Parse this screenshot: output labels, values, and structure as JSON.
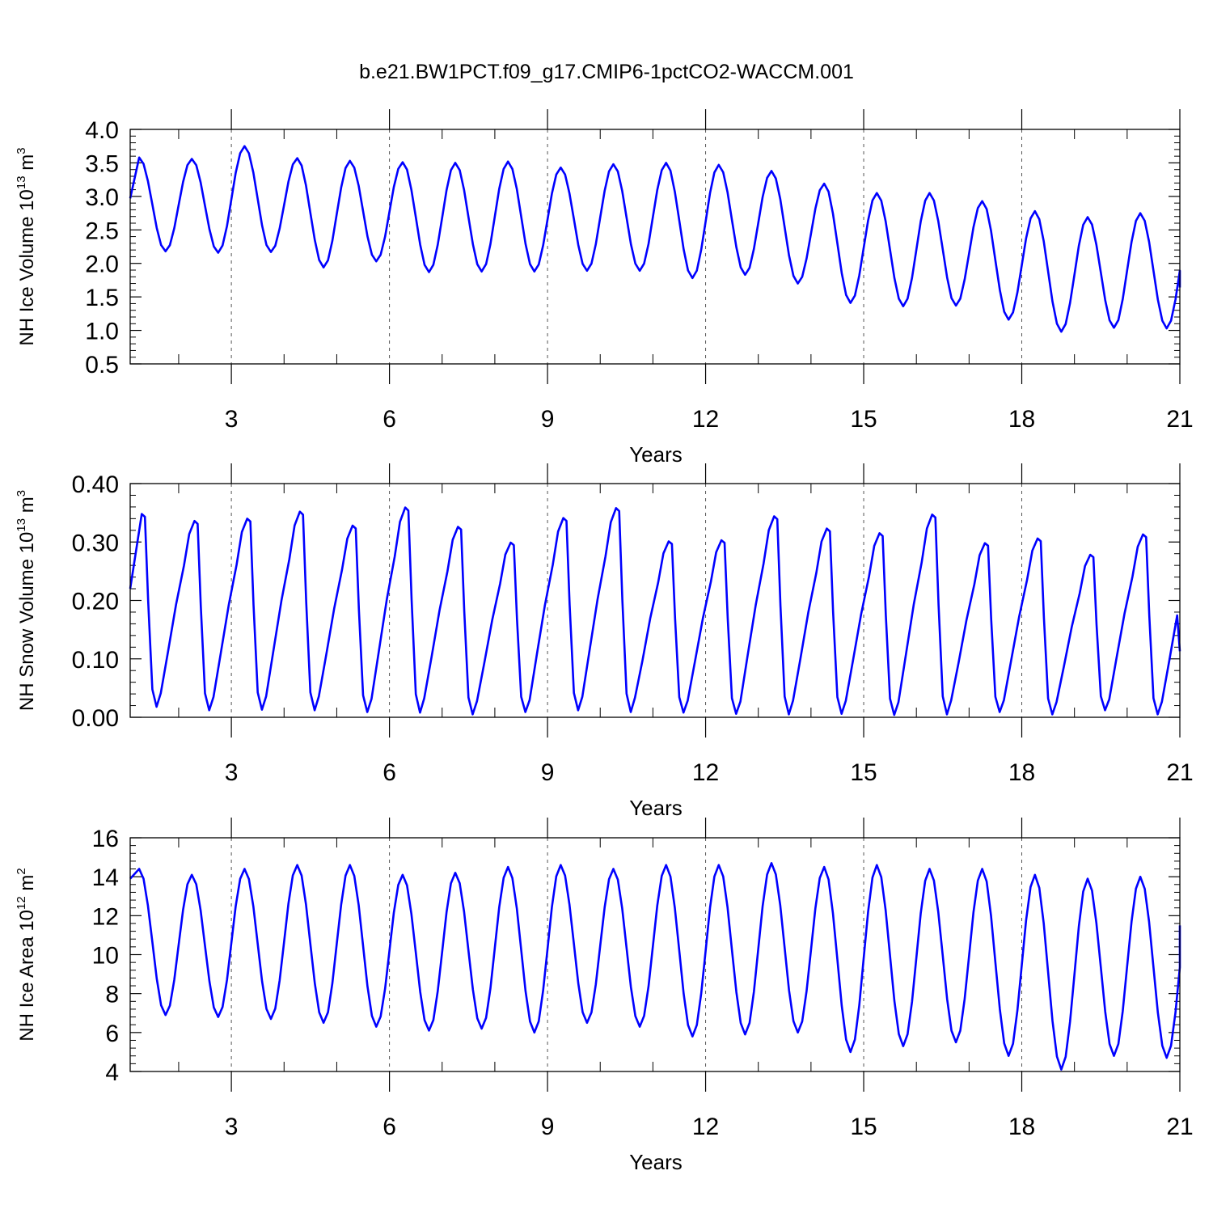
{
  "title": "b.e21.BW1PCT.f09_g17.CMIP6-1pctCO2-WACCM.001",
  "chart_data": [
    {
      "type": "line",
      "name": "ice-volume",
      "ylabel_main": "NH Ice Volume 10",
      "ylabel_exp": "13",
      "ylabel_unit": " m",
      "ylabel_unit_exp": "3",
      "xlabel": "Years",
      "xlim": [
        1.08,
        21.0
      ],
      "ylim": [
        0.5,
        4.0
      ],
      "xticks": [
        3,
        6,
        9,
        12,
        15,
        18,
        21
      ],
      "yticks": [
        0.5,
        1.0,
        1.5,
        2.0,
        2.5,
        3.0,
        3.5,
        4.0
      ],
      "ytick_labels": [
        "0.5",
        "1.0",
        "1.5",
        "2.0",
        "2.5",
        "3.0",
        "3.5",
        "4.0"
      ],
      "color": "#0000ff",
      "series": {
        "name": "NH Ice Volume",
        "maxima": [
          3.58,
          3.56,
          3.75,
          3.57,
          3.53,
          3.51,
          3.5,
          3.52,
          3.43,
          3.48,
          3.5,
          3.47,
          3.38,
          3.19,
          3.05,
          3.05,
          2.93,
          2.78,
          2.69,
          2.75
        ],
        "minima": [
          2.18,
          2.16,
          2.17,
          1.94,
          2.03,
          1.87,
          1.88,
          1.88,
          1.89,
          1.89,
          1.78,
          1.83,
          1.7,
          1.41,
          1.36,
          1.37,
          1.16,
          0.98,
          1.04,
          1.03
        ],
        "start_value": 2.97,
        "end_value": 1.64
      }
    },
    {
      "type": "line",
      "name": "snow-volume",
      "ylabel_main": "NH Snow Volume 10",
      "ylabel_exp": "13",
      "ylabel_unit": " m",
      "ylabel_unit_exp": "3",
      "xlabel": "Years",
      "xlim": [
        1.08,
        21.0
      ],
      "ylim": [
        0.0,
        0.4
      ],
      "xticks": [
        3,
        6,
        9,
        12,
        15,
        18,
        21
      ],
      "yticks": [
        0.0,
        0.1,
        0.2,
        0.3,
        0.4
      ],
      "ytick_labels": [
        "0.00",
        "0.10",
        "0.20",
        "0.30",
        "0.40"
      ],
      "color": "#0000ff",
      "series": {
        "name": "NH Snow Volume",
        "maxima": [
          0.348,
          0.336,
          0.34,
          0.352,
          0.328,
          0.359,
          0.326,
          0.299,
          0.341,
          0.358,
          0.301,
          0.303,
          0.344,
          0.323,
          0.315,
          0.347,
          0.298,
          0.306,
          0.278,
          0.313
        ],
        "minima": [
          0.018,
          0.012,
          0.013,
          0.012,
          0.009,
          0.008,
          0.005,
          0.009,
          0.012,
          0.009,
          0.008,
          0.006,
          0.005,
          0.006,
          0.004,
          0.005,
          0.009,
          0.005,
          0.012,
          0.005
        ],
        "start_value": 0.22,
        "end_value": 0.113
      }
    },
    {
      "type": "line",
      "name": "ice-area",
      "ylabel_main": "NH Ice Area 10",
      "ylabel_exp": "12",
      "ylabel_unit": " m",
      "ylabel_unit_exp": "2",
      "xlabel": "Years",
      "xlim": [
        1.08,
        21.0
      ],
      "ylim": [
        4,
        16
      ],
      "xticks": [
        3,
        6,
        9,
        12,
        15,
        18,
        21
      ],
      "yticks": [
        4,
        6,
        8,
        10,
        12,
        14,
        16
      ],
      "ytick_labels": [
        "4",
        "6",
        "8",
        "10",
        "12",
        "14",
        "16"
      ],
      "color": "#0000ff",
      "series": {
        "name": "NH Ice Area",
        "maxima": [
          14.4,
          14.1,
          14.4,
          14.6,
          14.6,
          14.1,
          14.2,
          14.5,
          14.6,
          14.4,
          14.6,
          14.6,
          14.7,
          14.5,
          14.6,
          14.4,
          14.4,
          14.1,
          13.9,
          14.0
        ],
        "minima": [
          6.9,
          6.8,
          6.7,
          6.5,
          6.3,
          6.1,
          6.2,
          6.0,
          6.5,
          6.3,
          5.8,
          5.9,
          6.0,
          5.0,
          5.3,
          5.5,
          4.8,
          4.1,
          4.8,
          4.7
        ],
        "start_value": 13.9,
        "end_value": 11.5
      }
    }
  ]
}
